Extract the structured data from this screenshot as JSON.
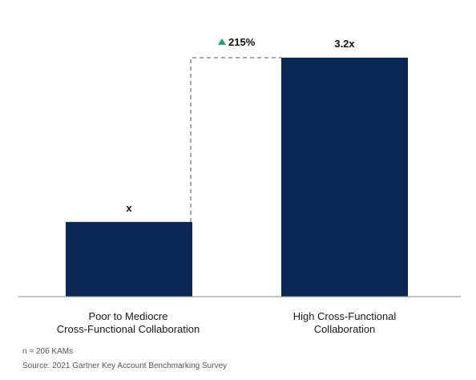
{
  "chart_data": {
    "type": "bar",
    "categories": [
      [
        "Poor to Mediocre",
        "Cross-Functional Collaboration"
      ],
      [
        "High Cross-Functional",
        "Collaboration"
      ]
    ],
    "values": [
      1,
      3.2
    ],
    "data_labels": [
      "x",
      "3.2x"
    ],
    "ylim": [
      0,
      3.8
    ],
    "grid": false,
    "bar_color": "#0b2855",
    "annotation": {
      "text": "215%",
      "icon": "triangle-up-icon",
      "icon_color": "#21a366",
      "connector": "dashed"
    }
  },
  "footnotes": {
    "sample": "n = 206 KAMs",
    "source": "Source: 2021 Gartner Key Account Benchmarking Survey"
  }
}
